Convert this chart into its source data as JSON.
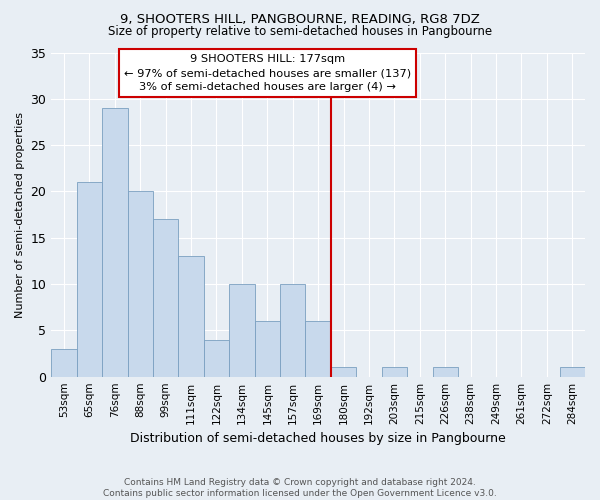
{
  "title": "9, SHOOTERS HILL, PANGBOURNE, READING, RG8 7DZ",
  "subtitle": "Size of property relative to semi-detached houses in Pangbourne",
  "xlabel": "Distribution of semi-detached houses by size in Pangbourne",
  "ylabel": "Number of semi-detached properties",
  "footer_line1": "Contains HM Land Registry data © Crown copyright and database right 2024.",
  "footer_line2": "Contains public sector information licensed under the Open Government Licence v3.0.",
  "bin_labels": [
    "53sqm",
    "65sqm",
    "76sqm",
    "88sqm",
    "99sqm",
    "111sqm",
    "122sqm",
    "134sqm",
    "145sqm",
    "157sqm",
    "169sqm",
    "180sqm",
    "192sqm",
    "203sqm",
    "215sqm",
    "226sqm",
    "238sqm",
    "249sqm",
    "261sqm",
    "272sqm",
    "284sqm"
  ],
  "bar_heights": [
    3,
    21,
    29,
    20,
    17,
    13,
    4,
    10,
    6,
    10,
    6,
    1,
    0,
    1,
    0,
    1,
    0,
    0,
    0,
    0,
    1
  ],
  "bar_color": "#c8d9ec",
  "bar_edge_color": "#7a9fc0",
  "highlight_line_color": "#cc0000",
  "ylim": [
    0,
    35
  ],
  "yticks": [
    0,
    5,
    10,
    15,
    20,
    25,
    30,
    35
  ],
  "annotation_title": "9 SHOOTERS HILL: 177sqm",
  "annotation_line1": "← 97% of semi-detached houses are smaller (137)",
  "annotation_line2": "3% of semi-detached houses are larger (4) →",
  "annotation_box_color": "#ffffff",
  "annotation_box_edge": "#cc0000",
  "background_color": "#e8eef4",
  "grid_color": "#ffffff",
  "title_fontsize": 9.5,
  "subtitle_fontsize": 8.5
}
